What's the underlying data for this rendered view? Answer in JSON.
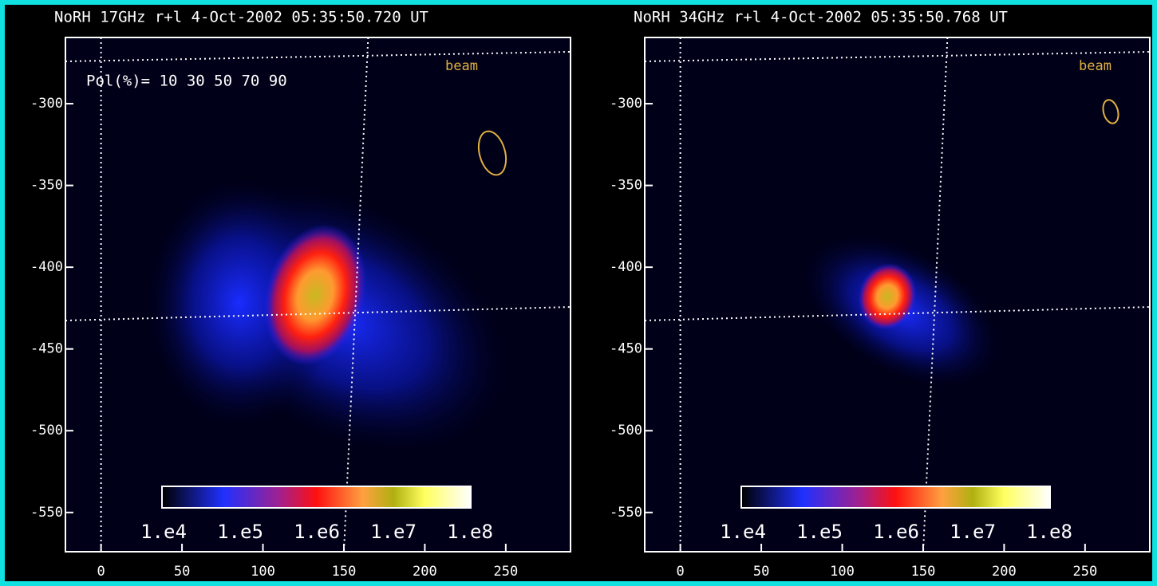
{
  "chart_data": [
    {
      "type": "image",
      "title": "NoRH 17GHz r+l  4-Oct-2002 05:35:50.720 UT",
      "xlim": [
        -22,
        290
      ],
      "ylim": [
        -259.5,
        -574
      ],
      "xticks": [
        0,
        50,
        100,
        150,
        200,
        250
      ],
      "yticks": [
        -300,
        -350,
        -400,
        -450,
        -500,
        -550
      ],
      "colorbar_labels": [
        "1.e4",
        "1.e5",
        "1.e6",
        "1.e7",
        "1.e8"
      ],
      "beam_label": "beam",
      "annotation": "Pol(%)= 10 30 50 70 90"
    },
    {
      "type": "image",
      "title": "NoRH 34GHz r+l  4-Oct-2002 05:35:50.768 UT",
      "xlim": [
        -22,
        290
      ],
      "ylim": [
        -259.5,
        -574
      ],
      "xticks": [
        0,
        50,
        100,
        150,
        200,
        250
      ],
      "yticks": [
        -300,
        -350,
        -400,
        -450,
        -500,
        -550
      ],
      "colorbar_labels": [
        "1.e4",
        "1.e5",
        "1.e6",
        "1.e7",
        "1.e8"
      ],
      "beam_label": "beam"
    }
  ]
}
